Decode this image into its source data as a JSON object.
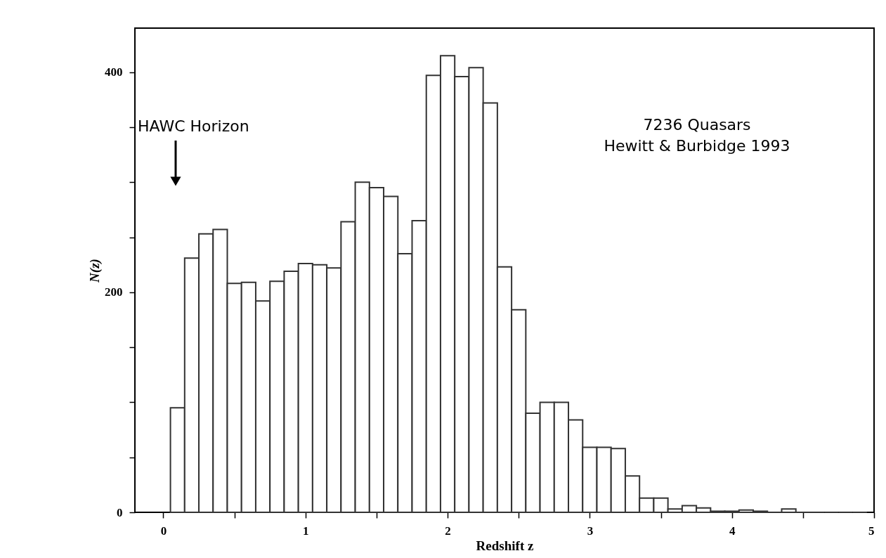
{
  "chart_data": {
    "type": "histogram",
    "xlabel": "Redshift z",
    "ylabel": "N(z)",
    "bins": [
      0.05,
      0.15,
      0.25,
      0.35,
      0.45,
      0.55,
      0.65,
      0.75,
      0.85,
      0.95,
      1.05,
      1.15,
      1.25,
      1.35,
      1.45,
      1.55,
      1.65,
      1.75,
      1.85,
      1.95,
      2.05,
      2.15,
      2.25,
      2.35,
      2.45,
      2.55,
      2.65,
      2.75,
      2.85,
      2.95,
      3.05,
      3.15,
      3.25,
      3.35,
      3.45,
      3.55,
      3.65,
      3.75,
      3.85,
      3.95,
      4.05,
      4.15,
      4.25,
      4.35,
      4.45,
      4.55,
      4.65,
      4.75,
      4.85,
      4.95
    ],
    "values": [
      95,
      231,
      253,
      257,
      208,
      209,
      192,
      210,
      219,
      226,
      225,
      222,
      264,
      300,
      295,
      287,
      235,
      265,
      397,
      415,
      396,
      404,
      372,
      223,
      184,
      90,
      100,
      100,
      84,
      59,
      59,
      58,
      33,
      13,
      13,
      3,
      6,
      4,
      1,
      1,
      2,
      1,
      0,
      3,
      0,
      0,
      0,
      0,
      0
    ],
    "color": "#333333",
    "xlim": [
      -0.2,
      5
    ],
    "ylim": [
      0,
      440
    ],
    "xticks": [
      0,
      {
        "value": 0.5,
        "label": null
      },
      1,
      {
        "value": 1.5,
        "label": null
      },
      2,
      {
        "value": 2.5,
        "label": null
      },
      3,
      {
        "value": 3.5,
        "label": null
      },
      4,
      {
        "value": 4.5,
        "label": null
      },
      5
    ],
    "yticks": [
      0,
      {
        "value": 50,
        "label": null
      },
      {
        "value": 100,
        "label": null
      },
      {
        "value": 150,
        "label": null
      },
      200,
      {
        "value": 250,
        "label": null
      },
      {
        "value": 300,
        "label": null
      },
      {
        "value": 350,
        "label": null
      },
      400
    ],
    "grid": false,
    "annotations": [
      "HAWC Horizon",
      "7236 Quasars",
      "Hewitt & Burbidge 1993"
    ]
  }
}
